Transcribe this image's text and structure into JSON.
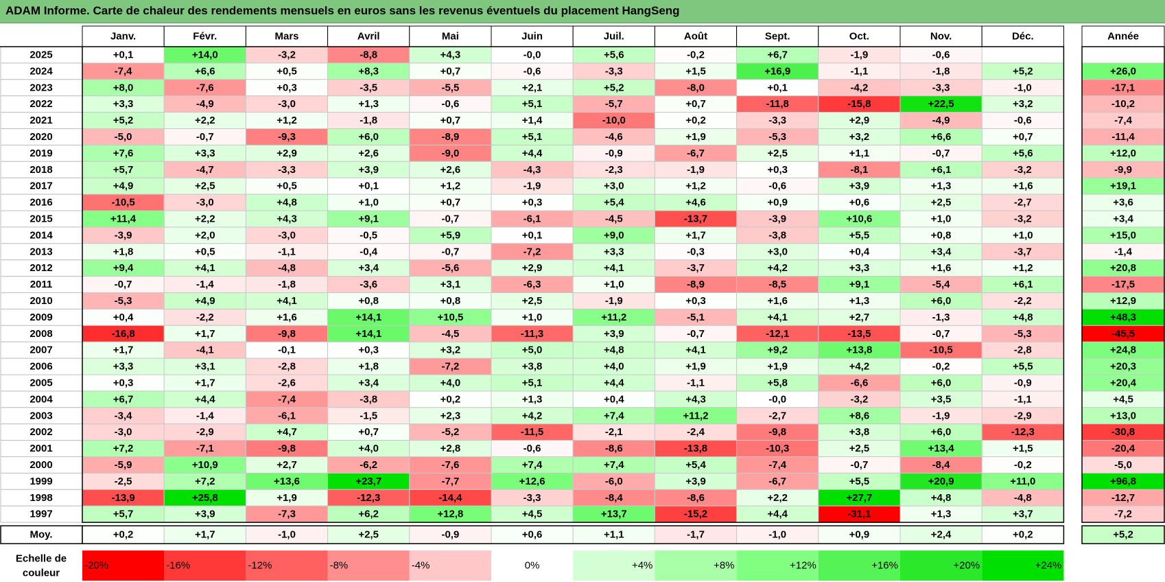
{
  "title": "ADAM Informe. Carte de chaleur des rendements mensuels en euros sans les revenus éventuels du placement HangSeng",
  "chart_data": {
    "type": "heatmap",
    "title": "ADAM Informe. Carte de chaleur des rendements mensuels en euros sans les revenus éventuels du placement HangSeng",
    "months": [
      "Janv.",
      "Févr.",
      "Mars",
      "Avril",
      "Mai",
      "Juin",
      "Juil.",
      "Août",
      "Sept.",
      "Oct.",
      "Nov.",
      "Déc."
    ],
    "year_header": "Année",
    "rows": [
      {
        "year": "2025",
        "values": [
          0.1,
          14.0,
          -3.2,
          -8.8,
          4.3,
          -0.0,
          5.6,
          -0.2,
          6.7,
          -1.9,
          -0.6,
          null
        ],
        "total": null
      },
      {
        "year": "2024",
        "values": [
          -7.4,
          6.6,
          0.5,
          8.3,
          0.7,
          -0.6,
          -3.3,
          1.5,
          16.9,
          -1.1,
          -1.8,
          5.2
        ],
        "total": 26.0
      },
      {
        "year": "2023",
        "values": [
          8.0,
          -7.6,
          0.3,
          -3.5,
          -5.5,
          2.1,
          5.2,
          -8.0,
          0.1,
          -4.2,
          -3.3,
          -1.0
        ],
        "total": -17.1
      },
      {
        "year": "2022",
        "values": [
          3.3,
          -4.9,
          -3.0,
          1.3,
          -0.6,
          5.1,
          -5.7,
          0.7,
          -11.8,
          -15.8,
          22.5,
          3.2
        ],
        "total": -10.2
      },
      {
        "year": "2021",
        "values": [
          5.2,
          2.2,
          1.2,
          -1.8,
          0.7,
          1.4,
          -10.0,
          0.2,
          -3.3,
          2.9,
          -4.9,
          -0.6
        ],
        "total": -7.4
      },
      {
        "year": "2020",
        "values": [
          -5.0,
          -0.7,
          -9.3,
          6.0,
          -8.9,
          5.1,
          -4.6,
          1.9,
          -5.3,
          3.2,
          6.6,
          0.7
        ],
        "total": -11.4
      },
      {
        "year": "2019",
        "values": [
          7.6,
          3.3,
          2.9,
          2.6,
          -9.0,
          4.4,
          -0.9,
          -6.7,
          2.5,
          1.1,
          -0.7,
          5.6
        ],
        "total": 12.0
      },
      {
        "year": "2018",
        "values": [
          5.7,
          -4.7,
          -3.3,
          3.9,
          2.6,
          -4.3,
          -2.3,
          -1.9,
          0.3,
          -8.1,
          6.1,
          -3.2
        ],
        "total": -9.9
      },
      {
        "year": "2017",
        "values": [
          4.9,
          2.5,
          0.5,
          0.1,
          1.2,
          -1.9,
          3.0,
          1.2,
          -0.6,
          3.9,
          1.3,
          1.6
        ],
        "total": 19.1
      },
      {
        "year": "2016",
        "values": [
          -10.5,
          -3.0,
          4.8,
          1.0,
          0.7,
          0.3,
          5.4,
          4.6,
          0.9,
          0.6,
          2.5,
          -2.7
        ],
        "total": 3.6
      },
      {
        "year": "2015",
        "values": [
          11.4,
          2.2,
          4.3,
          9.1,
          -0.7,
          -6.1,
          -4.5,
          -13.7,
          -3.9,
          10.6,
          1.0,
          -3.2
        ],
        "total": 3.4
      },
      {
        "year": "2014",
        "values": [
          -3.9,
          2.0,
          -3.0,
          -0.5,
          5.9,
          0.1,
          9.0,
          1.7,
          -3.8,
          5.5,
          0.8,
          1.0
        ],
        "total": 15.0
      },
      {
        "year": "2013",
        "values": [
          1.8,
          0.5,
          -1.1,
          -0.4,
          -0.7,
          -7.2,
          3.3,
          -0.3,
          3.0,
          0.4,
          3.4,
          -3.7
        ],
        "total": -1.4
      },
      {
        "year": "2012",
        "values": [
          9.4,
          4.1,
          -4.8,
          3.4,
          -5.6,
          2.9,
          4.1,
          -3.7,
          4.2,
          3.3,
          1.6,
          1.2
        ],
        "total": 20.8
      },
      {
        "year": "2011",
        "values": [
          -0.7,
          -1.4,
          -1.8,
          -3.6,
          3.1,
          -6.3,
          1.0,
          -8.9,
          -8.5,
          9.1,
          -5.4,
          6.1
        ],
        "total": -17.5
      },
      {
        "year": "2010",
        "values": [
          -5.3,
          4.9,
          4.1,
          0.8,
          0.8,
          2.5,
          -1.9,
          0.3,
          1.6,
          1.3,
          6.0,
          -2.2
        ],
        "total": 12.9
      },
      {
        "year": "2009",
        "values": [
          0.4,
          -2.2,
          1.6,
          14.1,
          10.5,
          1.0,
          11.2,
          -5.1,
          4.1,
          2.7,
          -1.3,
          4.8
        ],
        "total": 48.3
      },
      {
        "year": "2008",
        "values": [
          -16.8,
          1.7,
          -9.8,
          14.1,
          -4.5,
          -11.3,
          3.9,
          -0.7,
          -12.1,
          -13.5,
          -0.7,
          -5.3
        ],
        "total": -45.5
      },
      {
        "year": "2007",
        "values": [
          1.7,
          -4.1,
          -0.1,
          0.3,
          3.2,
          5.0,
          4.8,
          4.1,
          9.2,
          13.8,
          -10.5,
          -2.8
        ],
        "total": 24.8
      },
      {
        "year": "2006",
        "values": [
          3.3,
          3.1,
          -2.8,
          1.8,
          -7.2,
          3.8,
          4.0,
          1.9,
          1.9,
          4.2,
          -0.2,
          5.5
        ],
        "total": 20.3
      },
      {
        "year": "2005",
        "values": [
          0.3,
          1.7,
          -2.6,
          3.4,
          4.0,
          5.1,
          4.4,
          -1.1,
          5.8,
          -6.6,
          6.0,
          -0.9
        ],
        "total": 20.4
      },
      {
        "year": "2004",
        "values": [
          6.7,
          4.4,
          -7.4,
          -3.8,
          0.2,
          1.3,
          0.4,
          4.3,
          -0.0,
          -3.2,
          3.5,
          -1.1
        ],
        "total": 4.5
      },
      {
        "year": "2003",
        "values": [
          -3.4,
          -1.4,
          -6.1,
          -1.5,
          2.3,
          4.2,
          7.4,
          11.2,
          -2.7,
          8.6,
          -1.9,
          -2.9
        ],
        "total": 13.0
      },
      {
        "year": "2002",
        "values": [
          -3.0,
          -2.9,
          4.7,
          0.7,
          -5.2,
          -11.5,
          -2.1,
          -2.4,
          -9.8,
          3.8,
          6.0,
          -12.3
        ],
        "total": -30.8
      },
      {
        "year": "2001",
        "values": [
          7.2,
          -7.1,
          -9.8,
          4.0,
          2.8,
          -0.6,
          -8.6,
          -13.8,
          -10.3,
          2.5,
          13.4,
          1.5
        ],
        "total": -20.4
      },
      {
        "year": "2000",
        "values": [
          -5.9,
          10.9,
          2.7,
          -6.2,
          -7.6,
          7.4,
          7.4,
          5.4,
          -7.4,
          -0.7,
          -8.4,
          -0.2
        ],
        "total": -5.0
      },
      {
        "year": "1999",
        "values": [
          -2.5,
          7.2,
          13.6,
          23.7,
          -7.7,
          12.6,
          -6.0,
          3.9,
          -6.7,
          5.5,
          20.9,
          11.0
        ],
        "total": 96.8
      },
      {
        "year": "1998",
        "values": [
          -13.9,
          25.8,
          1.9,
          -12.3,
          -14.4,
          -3.3,
          -8.4,
          -8.6,
          2.2,
          27.7,
          4.8,
          -4.8
        ],
        "total": -12.7
      },
      {
        "year": "1997",
        "values": [
          5.7,
          3.9,
          -7.3,
          6.2,
          12.8,
          4.5,
          13.7,
          -15.2,
          4.4,
          -31.1,
          1.3,
          3.7
        ],
        "total": -7.2
      }
    ],
    "average_row": {
      "label": "Moy.",
      "values": [
        0.2,
        1.7,
        -1.0,
        2.5,
        -0.9,
        0.6,
        1.1,
        -1.7,
        -1.0,
        0.9,
        2.4,
        0.2
      ],
      "total": 5.2
    },
    "color_scale": {
      "label_line1": "Echelle de",
      "label_line2": "couleur",
      "stops": [
        {
          "value": -20,
          "label": "-20%",
          "color": "#ff0000"
        },
        {
          "value": -16,
          "label": "-16%",
          "color": "#ff3838"
        },
        {
          "value": -12,
          "label": "-12%",
          "color": "#ff6161"
        },
        {
          "value": -8,
          "label": "-8%",
          "color": "#ff8f8f"
        },
        {
          "value": -4,
          "label": "-4%",
          "color": "#ffc7c7"
        },
        {
          "value": 0,
          "label": "0%",
          "color": "#ffffff"
        },
        {
          "value": 4,
          "label": "+4%",
          "color": "#d4ffd4"
        },
        {
          "value": 8,
          "label": "+8%",
          "color": "#a8ffa8"
        },
        {
          "value": 12,
          "label": "+12%",
          "color": "#80ff80"
        },
        {
          "value": 16,
          "label": "+16%",
          "color": "#55f355"
        },
        {
          "value": 20,
          "label": "+20%",
          "color": "#2be82b"
        },
        {
          "value": 24,
          "label": "+24%",
          "color": "#00e000"
        }
      ]
    }
  }
}
